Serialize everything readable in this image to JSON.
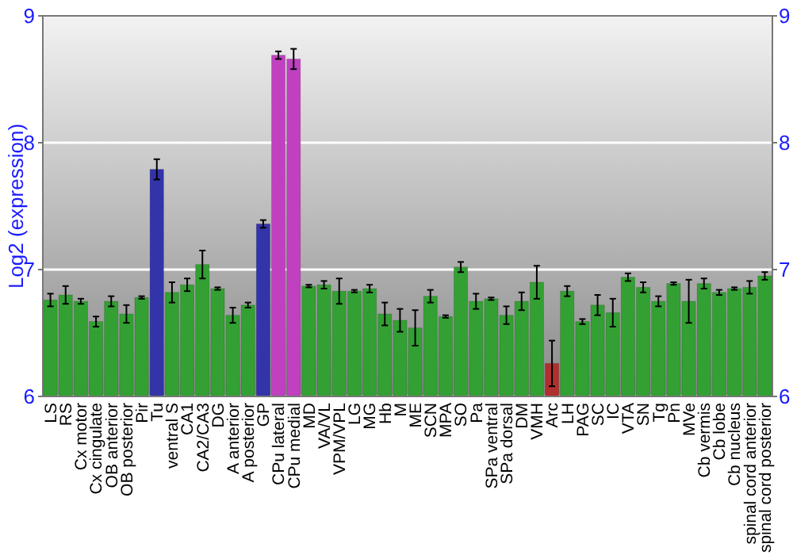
{
  "chart_data": {
    "type": "bar",
    "ylabel": "Log2 (expression)",
    "categories": [
      "LS",
      "RS",
      "Cx motor",
      "Cx cingulate",
      "OB anterior",
      "OB posterior",
      "Pir",
      "Tu",
      "ventral S",
      "CA1",
      "CA2/CA3",
      "DG",
      "A anterior",
      "A posterior",
      "GP",
      "CPu lateral",
      "CPu medial",
      "MD",
      "VA/VL",
      "VPM/VPL",
      "LG",
      "MG",
      "Hb",
      "M",
      "ME",
      "SCN",
      "MPA",
      "SO",
      "Pa",
      "SPa ventral",
      "SPa dorsal",
      "DM",
      "VMH",
      "Arc",
      "LH",
      "PAG",
      "SC",
      "IC",
      "VTA",
      "SN",
      "Tg",
      "Pn",
      "MVe",
      "Cb vermis",
      "Cb lobe",
      "Cb nucleus",
      "spinal cord anterior",
      "spinal cord posterior"
    ],
    "values": [
      6.76,
      6.8,
      6.75,
      6.59,
      6.75,
      6.65,
      6.78,
      7.79,
      6.82,
      6.88,
      7.04,
      6.85,
      6.64,
      6.72,
      7.36,
      8.69,
      8.66,
      6.87,
      6.88,
      6.83,
      6.83,
      6.85,
      6.65,
      6.6,
      6.54,
      6.79,
      6.63,
      7.02,
      6.75,
      6.77,
      6.64,
      6.75,
      6.9,
      6.26,
      6.83,
      6.59,
      6.72,
      6.66,
      6.94,
      6.86,
      6.75,
      6.89,
      6.75,
      6.89,
      6.82,
      6.85,
      6.86,
      6.95
    ],
    "errors": [
      0.05,
      0.07,
      0.02,
      0.04,
      0.04,
      0.07,
      0.01,
      0.08,
      0.08,
      0.05,
      0.11,
      0.01,
      0.06,
      0.02,
      0.03,
      0.03,
      0.08,
      0.01,
      0.03,
      0.1,
      0.01,
      0.03,
      0.09,
      0.09,
      0.14,
      0.05,
      0.01,
      0.04,
      0.06,
      0.01,
      0.07,
      0.07,
      0.13,
      0.18,
      0.04,
      0.02,
      0.08,
      0.11,
      0.03,
      0.04,
      0.04,
      0.01,
      0.17,
      0.04,
      0.02,
      0.01,
      0.05,
      0.03
    ],
    "colors": [
      "#33a033",
      "#33a033",
      "#33a033",
      "#33a033",
      "#33a033",
      "#33a033",
      "#33a033",
      "#3333aa",
      "#33a033",
      "#33a033",
      "#33a033",
      "#33a033",
      "#33a033",
      "#33a033",
      "#3333aa",
      "#c040c0",
      "#c040c0",
      "#33a033",
      "#33a033",
      "#33a033",
      "#33a033",
      "#33a033",
      "#33a033",
      "#33a033",
      "#33a033",
      "#33a033",
      "#33a033",
      "#33a033",
      "#33a033",
      "#33a033",
      "#33a033",
      "#33a033",
      "#33a033",
      "#b03030",
      "#33a033",
      "#33a033",
      "#33a033",
      "#33a033",
      "#33a033",
      "#33a033",
      "#33a033",
      "#33a033",
      "#33a033",
      "#33a033",
      "#33a033",
      "#33a033",
      "#33a033",
      "#33a033"
    ],
    "ylim": [
      6,
      9
    ],
    "yticks": [
      6,
      7,
      8,
      9
    ],
    "y2lim": [
      6,
      9
    ],
    "y2ticks": [
      6,
      7,
      8,
      9
    ],
    "grid": "y"
  }
}
